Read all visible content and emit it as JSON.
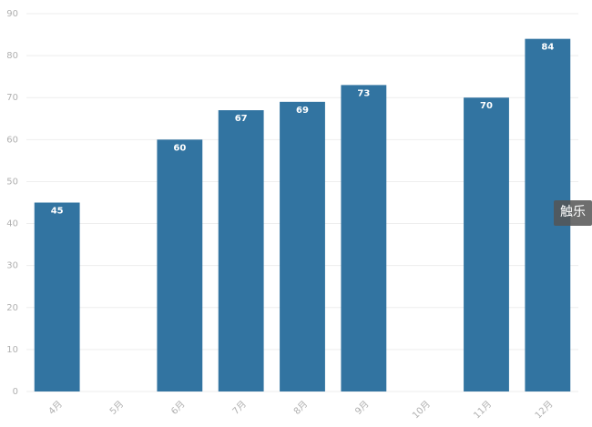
{
  "chart_data": {
    "type": "bar",
    "categories": [
      "4月",
      "5月",
      "6月",
      "7月",
      "8月",
      "9月",
      "10月",
      "11月",
      "12月"
    ],
    "values": [
      45,
      null,
      60,
      67,
      69,
      73,
      null,
      70,
      84
    ],
    "color": "#3274a1",
    "ylim": [
      0,
      90
    ],
    "yticks": [
      0,
      10,
      20,
      30,
      40,
      50,
      60,
      70,
      80,
      90
    ],
    "grid": true
  },
  "watermark": "触乐"
}
